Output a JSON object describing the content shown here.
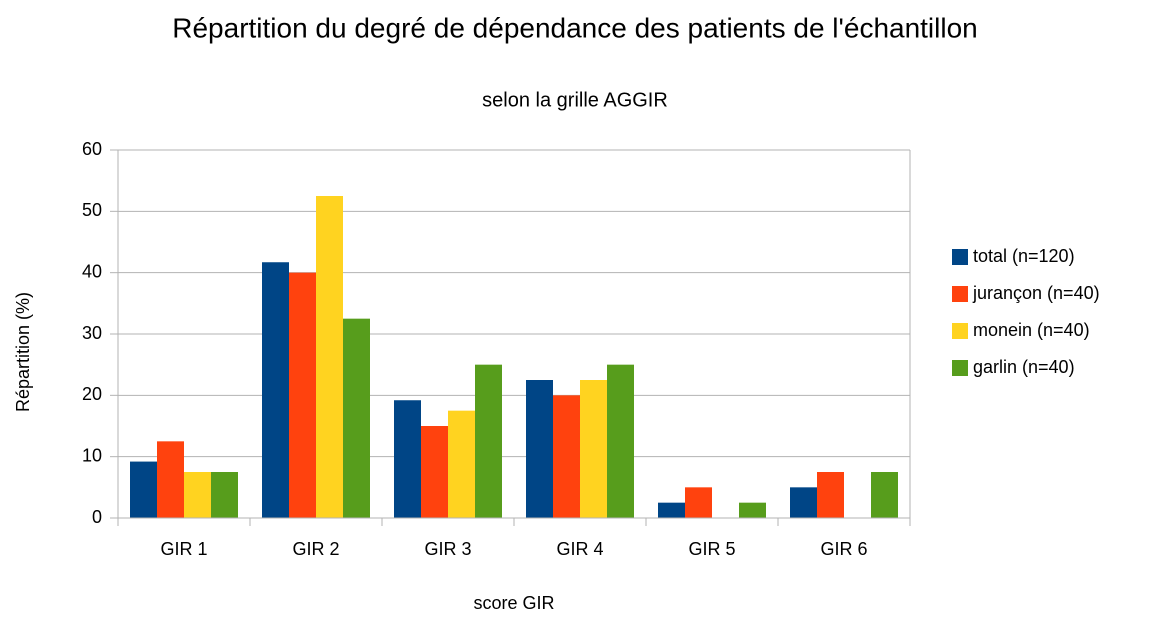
{
  "chart_data": {
    "type": "bar",
    "title": "Répartition du degré de dépendance des patients de l'échantillon",
    "subtitle": "selon la grille AGGIR",
    "x_label": "score GIR",
    "y_label": "Répartition (%)",
    "categories": [
      "GIR 1",
      "GIR 2",
      "GIR 3",
      "GIR 4",
      "GIR 5",
      "GIR 6"
    ],
    "series": [
      {
        "name": "total (n=120)",
        "color": "#004586",
        "values": [
          9.2,
          41.7,
          19.2,
          22.5,
          2.5,
          5
        ]
      },
      {
        "name": "jurançon (n=40)",
        "color": "#ff420e",
        "values": [
          12.5,
          40,
          15,
          20,
          5,
          7.5
        ]
      },
      {
        "name": "monein (n=40)",
        "color": "#ffd320",
        "values": [
          7.5,
          52.5,
          17.5,
          22.5,
          0,
          0
        ]
      },
      {
        "name": "garlin (n=40)",
        "color": "#579d1c",
        "values": [
          7.5,
          32.5,
          25,
          25,
          2.5,
          7.5
        ]
      }
    ],
    "ylim": [
      0,
      60
    ],
    "yticks": [
      0,
      10,
      20,
      30,
      40,
      50,
      60
    ],
    "grid": true,
    "legend": "right"
  }
}
